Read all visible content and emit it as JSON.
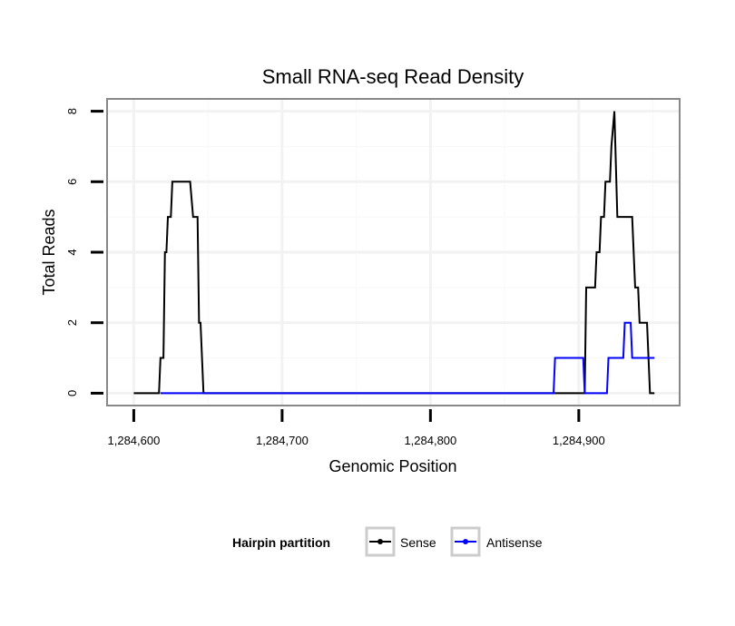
{
  "chart_data": {
    "type": "line",
    "title": "Small RNA-seq Read Density",
    "xlabel": "Genomic Position",
    "ylabel": "Total Reads",
    "xlim": [
      1284582,
      1284968
    ],
    "ylim": [
      -0.35,
      8.35
    ],
    "x_ticks": [
      1284600,
      1284700,
      1284800,
      1284900
    ],
    "x_tick_labels": [
      "1,284,600",
      "1,284,700",
      "1,284,800",
      "1,284,900"
    ],
    "y_ticks": [
      0,
      2,
      4,
      6,
      8
    ],
    "y_tick_labels": [
      "0",
      "2",
      "4",
      "6",
      "8"
    ],
    "grid": true,
    "legend": {
      "title": "Hairpin partition",
      "position": "bottom",
      "entries": [
        "Sense",
        "Antisense"
      ]
    },
    "series": [
      {
        "name": "Sense",
        "color": "#000000",
        "points": [
          [
            1284600,
            0
          ],
          [
            1284617,
            0
          ],
          [
            1284618,
            1
          ],
          [
            1284620,
            1
          ],
          [
            1284621,
            4
          ],
          [
            1284622,
            4
          ],
          [
            1284623,
            5
          ],
          [
            1284625,
            5
          ],
          [
            1284626,
            6
          ],
          [
            1284638,
            6
          ],
          [
            1284640,
            5
          ],
          [
            1284643,
            5
          ],
          [
            1284644,
            2
          ],
          [
            1284645,
            2
          ],
          [
            1284647,
            0
          ],
          [
            1284904,
            0
          ],
          [
            1284905,
            3
          ],
          [
            1284911,
            3
          ],
          [
            1284912,
            4
          ],
          [
            1284914,
            4
          ],
          [
            1284915,
            5
          ],
          [
            1284917,
            5
          ],
          [
            1284918,
            6
          ],
          [
            1284921,
            6
          ],
          [
            1284922,
            7
          ],
          [
            1284924,
            8
          ],
          [
            1284926,
            5
          ],
          [
            1284936,
            5
          ],
          [
            1284938,
            3
          ],
          [
            1284940,
            3
          ],
          [
            1284941,
            2
          ],
          [
            1284946,
            2
          ],
          [
            1284948,
            0
          ],
          [
            1284951,
            0
          ]
        ]
      },
      {
        "name": "Antisense",
        "color": "#0000ff",
        "points": [
          [
            1284618,
            0
          ],
          [
            1284648,
            0
          ],
          [
            1284883,
            0
          ],
          [
            1284884,
            1
          ],
          [
            1284903,
            1
          ],
          [
            1284904,
            0
          ],
          [
            1284919,
            0
          ],
          [
            1284920,
            1
          ],
          [
            1284930,
            1
          ],
          [
            1284931,
            2
          ],
          [
            1284935,
            2
          ],
          [
            1284936,
            1
          ],
          [
            1284951,
            1
          ]
        ]
      }
    ]
  }
}
